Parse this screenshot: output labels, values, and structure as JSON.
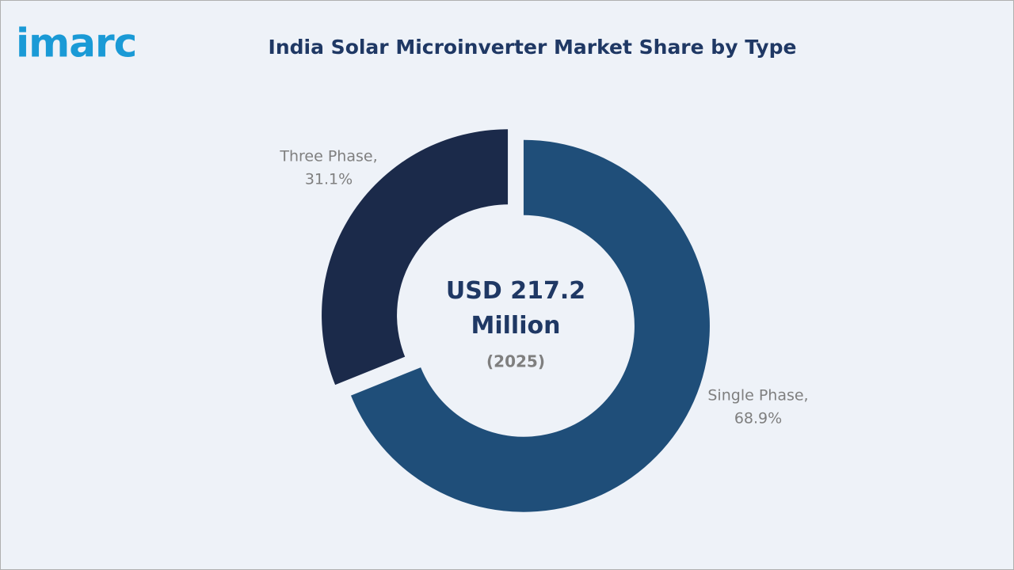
{
  "logo": "imarc",
  "chart_data": {
    "type": "pie",
    "title": "India Solar Microinverter Market Share by Type",
    "categories": [
      "Single Phase,",
      "Three Phase,"
    ],
    "values": [
      68.9,
      31.1
    ],
    "value_labels": [
      "68.9%",
      "31.1%"
    ],
    "colors": [
      "#1f4e79",
      "#1b2a4a"
    ],
    "donut": true,
    "center_label": "USD 217.2 Million",
    "center_sublabel": "(2025)"
  }
}
